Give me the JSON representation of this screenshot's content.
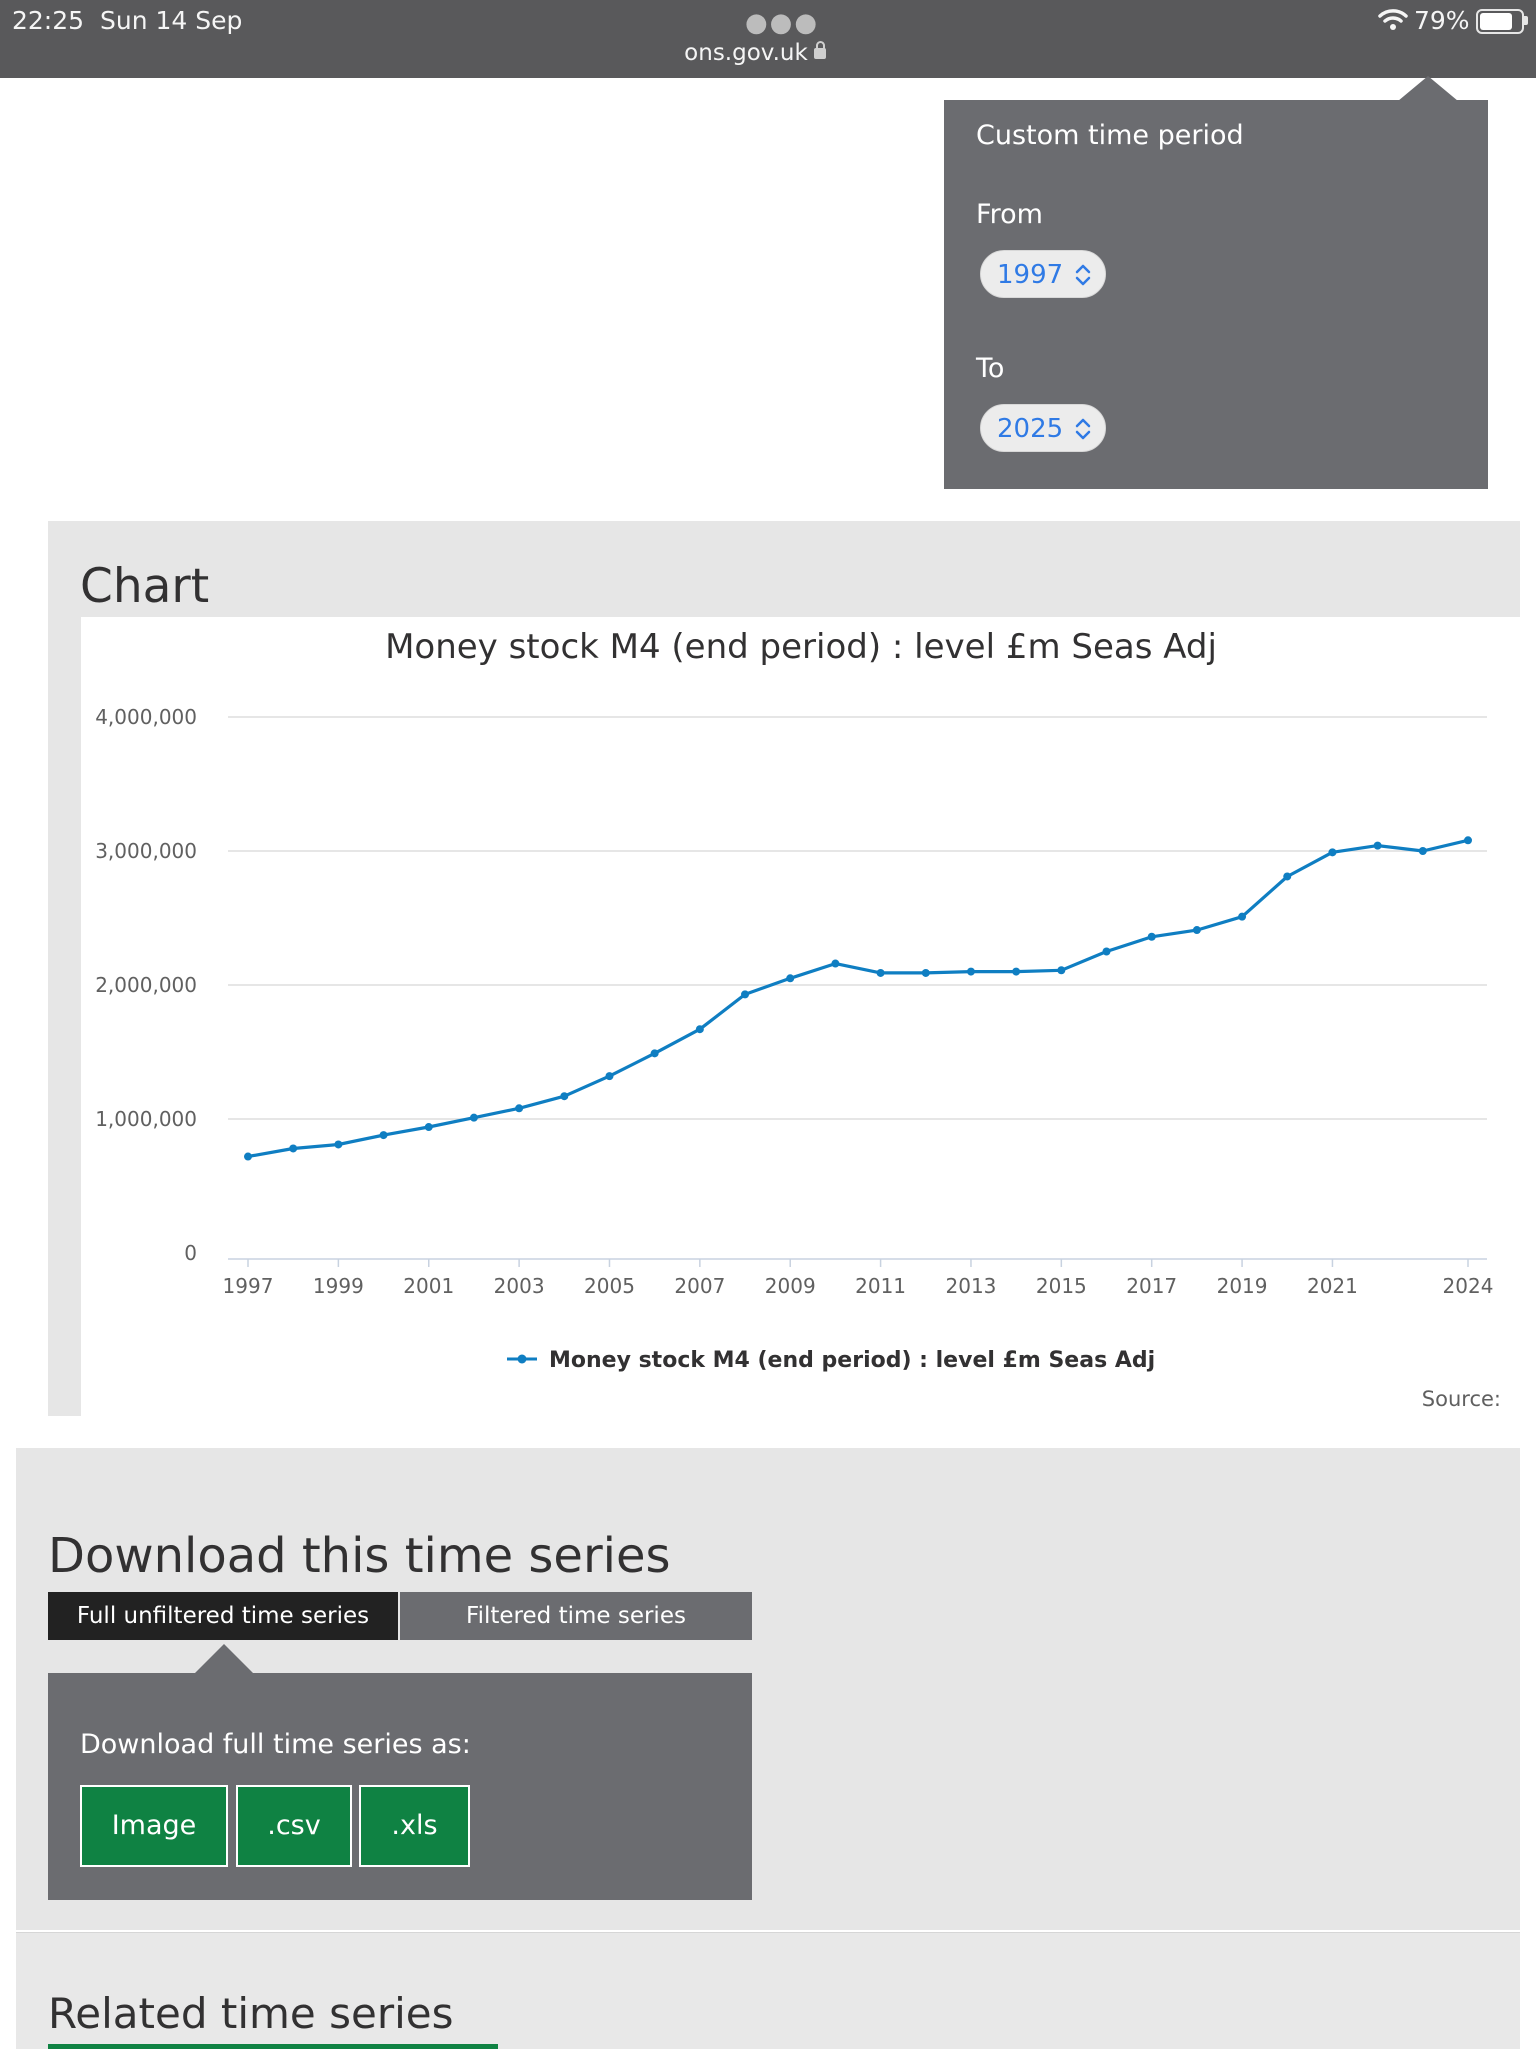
{
  "status_bar": {
    "time": "22:25",
    "date": "Sun 14 Sep",
    "url": "ons.gov.uk",
    "battery": "79%"
  },
  "time_period": {
    "title": "Custom time period",
    "from_label": "From",
    "from_value": "1997",
    "to_label": "To",
    "to_value": "2025"
  },
  "chart_section": {
    "heading": "Chart",
    "source_label": "Source:"
  },
  "chart_data": {
    "type": "line",
    "title": "Money stock M4 (end period) : level £m Seas Adj",
    "xlabel": "",
    "ylabel": "",
    "ylim": [
      0,
      4000000
    ],
    "yticks": [
      "0",
      "1,000,000",
      "2,000,000",
      "3,000,000",
      "4,000,000"
    ],
    "xticks": [
      "1997",
      "1999",
      "2001",
      "2003",
      "2005",
      "2007",
      "2009",
      "2011",
      "2013",
      "2015",
      "2017",
      "2019",
      "2021",
      "2024"
    ],
    "grid": true,
    "legend": "bottom",
    "color": "#0f7ec2",
    "series": [
      {
        "name": "Money stock M4 (end period) : level £m Seas Adj",
        "x": [
          1997,
          1998,
          1999,
          2000,
          2001,
          2002,
          2003,
          2004,
          2005,
          2006,
          2007,
          2008,
          2009,
          2010,
          2011,
          2012,
          2013,
          2014,
          2015,
          2016,
          2017,
          2018,
          2019,
          2020,
          2021,
          2022,
          2023,
          2024
        ],
        "values": [
          720000,
          780000,
          810000,
          880000,
          940000,
          1010000,
          1080000,
          1170000,
          1320000,
          1490000,
          1670000,
          1930000,
          2050000,
          2160000,
          2090000,
          2090000,
          2100000,
          2100000,
          2110000,
          2250000,
          2360000,
          2410000,
          2510000,
          2810000,
          2990000,
          3040000,
          3000000,
          3080000
        ]
      }
    ]
  },
  "download": {
    "heading": "Download this time series",
    "tab_full": "Full unfiltered time series",
    "tab_filtered": "Filtered time series",
    "label": "Download full time series as:",
    "btn_image": "Image",
    "btn_csv": ".csv",
    "btn_xls": ".xls"
  },
  "related": {
    "heading": "Related time series"
  }
}
